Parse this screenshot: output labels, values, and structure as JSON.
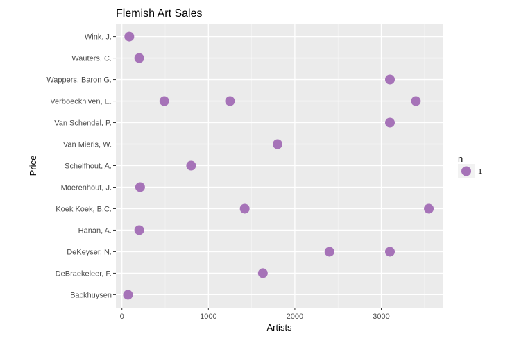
{
  "chart_data": {
    "type": "scatter",
    "title": "Flemish Art Sales",
    "xlabel": "Artists",
    "ylabel": "Price",
    "xlim": [
      -70,
      3710
    ],
    "x_ticks": [
      0,
      1000,
      2000,
      3000
    ],
    "x_tick_labels": [
      "0",
      "1000",
      "2000",
      "3000"
    ],
    "categories": [
      "Backhuysen",
      "DeBraekeleer, F.",
      "DeKeyser, N.",
      "Hanan, A.",
      "Koek Koek, B.C.",
      "Moerenhout, J.",
      "Schelfhout, A.",
      "Van Mieris, W.",
      "Van Schendel, P.",
      "Verboeckhiven, E.",
      "Wappers, Baron G.",
      "Wauters, C.",
      "Wink, J."
    ],
    "grid": true,
    "legend": {
      "title": "n",
      "placement": "right",
      "entries": [
        {
          "label": "1",
          "color": "#a673b8"
        }
      ]
    },
    "series": [
      {
        "color": "#a673b8",
        "points": [
          {
            "y": "Backhuysen",
            "x": 70
          },
          {
            "y": "DeBraekeleer, F.",
            "x": 1630
          },
          {
            "y": "DeKeyser, N.",
            "x": 2400
          },
          {
            "y": "DeKeyser, N.",
            "x": 3100
          },
          {
            "y": "Hanan, A.",
            "x": 200
          },
          {
            "y": "Koek Koek, B.C.",
            "x": 1420
          },
          {
            "y": "Koek Koek, B.C.",
            "x": 3550
          },
          {
            "y": "Moerenhout, J.",
            "x": 210
          },
          {
            "y": "Schelfhout, A.",
            "x": 800
          },
          {
            "y": "Van Mieris, W.",
            "x": 1800
          },
          {
            "y": "Van Schendel, P.",
            "x": 3100
          },
          {
            "y": "Verboeckhiven, E.",
            "x": 490
          },
          {
            "y": "Verboeckhiven, E.",
            "x": 1250
          },
          {
            "y": "Verboeckhiven, E.",
            "x": 3400
          },
          {
            "y": "Wappers, Baron G.",
            "x": 3100
          },
          {
            "y": "Wauters, C.",
            "x": 200
          },
          {
            "y": "Wink, J.",
            "x": 85
          }
        ]
      }
    ]
  }
}
